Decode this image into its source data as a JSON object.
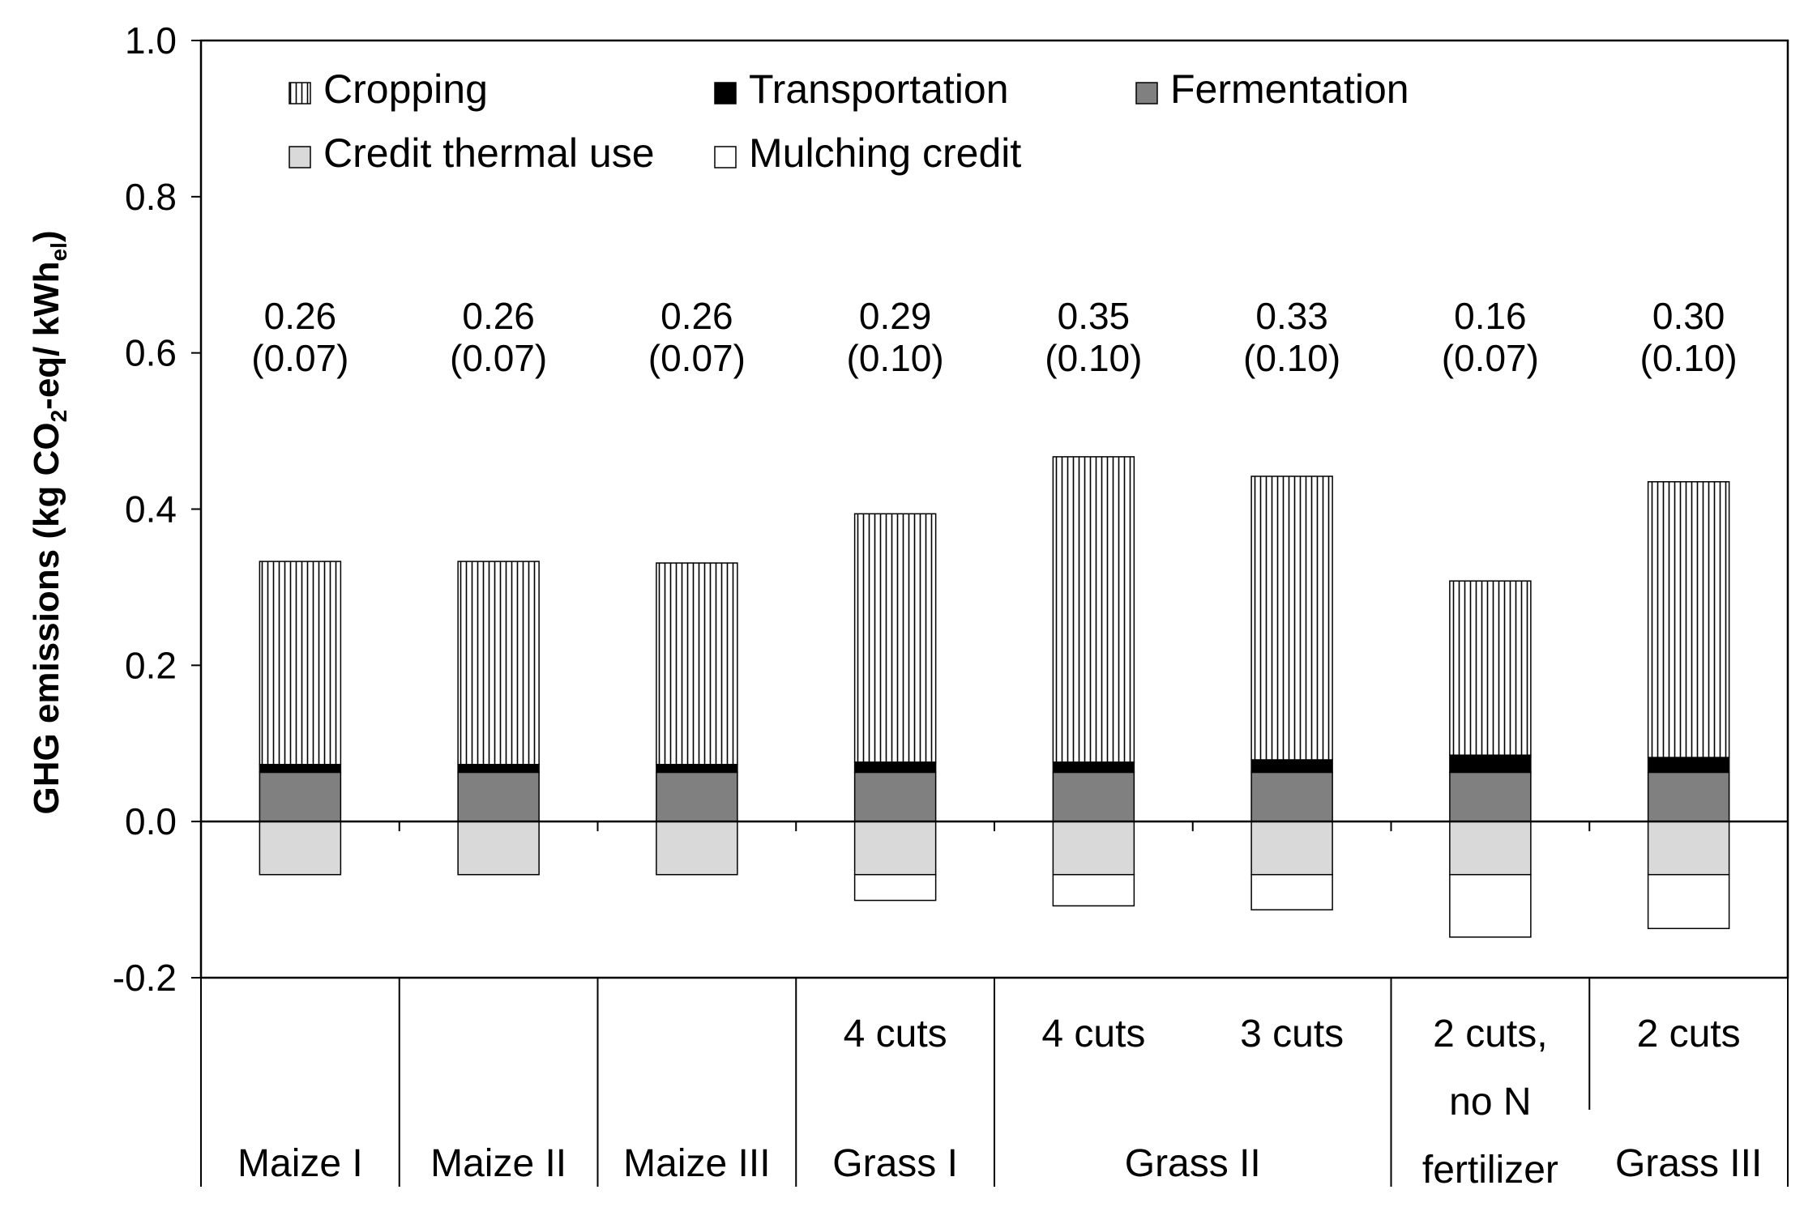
{
  "chart_data": {
    "type": "bar",
    "stacked": true,
    "ylabel": {
      "prefix": "GHG emissions (kg CO",
      "sub1": "2",
      "mid": "-eq/ kWh",
      "sub2": "el",
      "suffix": ")"
    },
    "ylim": [
      -0.2,
      1.0
    ],
    "yticks": [
      "1.0",
      "0.8",
      "0.6",
      "0.4",
      "0.2",
      "0.0",
      "-0.2"
    ],
    "ytick_values": [
      1.0,
      0.8,
      0.6,
      0.4,
      0.2,
      0.0,
      -0.2
    ],
    "categories": [
      "Maize I",
      "Maize II",
      "Maize III",
      "Grass I",
      "",
      "Grass II",
      "",
      "Grass III"
    ],
    "category_groups": [
      {
        "name": "Maize I",
        "from": 0,
        "to": 0
      },
      {
        "name": "Maize II",
        "from": 1,
        "to": 1
      },
      {
        "name": "Maize III",
        "from": 2,
        "to": 2
      },
      {
        "name": "Grass I",
        "from": 3,
        "to": 3
      },
      {
        "name": "Grass II",
        "from": 4,
        "to": 5
      },
      {
        "name": "",
        "from": 6,
        "to": 6
      },
      {
        "name": "Grass III",
        "from": 7,
        "to": 7
      }
    ],
    "sub_labels": [
      [],
      [],
      [],
      [
        "4 cuts"
      ],
      [
        "4 cuts"
      ],
      [
        "3 cuts"
      ],
      [
        "2 cuts,",
        "no N",
        "fertilizer"
      ],
      [
        "2 cuts"
      ]
    ],
    "annotations": [
      [
        "0.26",
        "(0.07)"
      ],
      [
        "0.26",
        "(0.07)"
      ],
      [
        "0.26",
        "(0.07)"
      ],
      [
        "0.29",
        "(0.10)"
      ],
      [
        "0.35",
        "(0.10)"
      ],
      [
        "0.33",
        "(0.10)"
      ],
      [
        "0.16",
        "(0.07)"
      ],
      [
        "0.30",
        "(0.10)"
      ]
    ],
    "series": [
      {
        "name": "Fermentation",
        "key": "fermentation",
        "fill": "#808080",
        "pattern": "solid",
        "values": [
          0.063,
          0.063,
          0.063,
          0.063,
          0.063,
          0.063,
          0.063,
          0.063
        ]
      },
      {
        "name": "Transportation",
        "key": "transportation",
        "fill": "#000000",
        "pattern": "solid",
        "values": [
          0.01,
          0.01,
          0.01,
          0.013,
          0.013,
          0.016,
          0.022,
          0.019
        ]
      },
      {
        "name": "Cropping",
        "key": "cropping",
        "fill": "#ffffff",
        "pattern": "vertical-hatch",
        "values": [
          0.26,
          0.26,
          0.258,
          0.318,
          0.391,
          0.363,
          0.223,
          0.353
        ]
      },
      {
        "name": "Credit thermal use",
        "key": "credit_thermal",
        "fill": "#d9d9d9",
        "pattern": "solid",
        "values": [
          -0.068,
          -0.068,
          -0.068,
          -0.068,
          -0.068,
          -0.068,
          -0.068,
          -0.068
        ]
      },
      {
        "name": "Mulching credit",
        "key": "mulching",
        "fill": "#ffffff",
        "pattern": "solid",
        "values": [
          0,
          0,
          0,
          -0.033,
          -0.04,
          -0.045,
          -0.08,
          -0.069
        ]
      }
    ],
    "legend": {
      "placement": "top-left",
      "rows": [
        [
          "cropping",
          "transportation",
          "fermentation"
        ],
        [
          "credit_thermal",
          "mulching"
        ]
      ]
    },
    "grid": false
  }
}
